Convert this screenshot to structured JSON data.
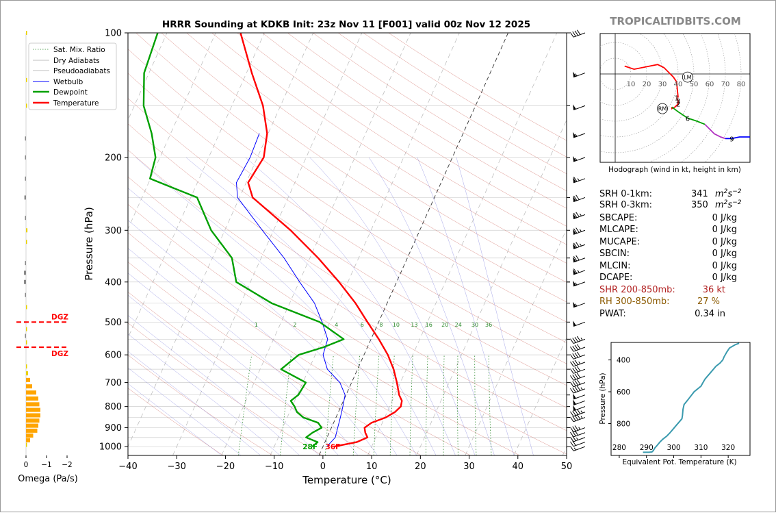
{
  "header": {
    "title": "HRRR Sounding at KDKB Init: 23z Nov 11 [F001] valid 00z Nov 12 2025",
    "brand": "TROPICALTIDBITS.COM"
  },
  "colors": {
    "temperature": "#ff0000",
    "dewpoint": "#00a000",
    "wetbulb": "#0000ff",
    "dry_adiabat": "#c0392b",
    "moist_adiabat": "#6a6ad8",
    "mixing_ratio": "#2e8b2e",
    "srh": "#9b30b0",
    "shear": "#b22222",
    "rh": "#8b5a00",
    "theta_e": "#3a9aae",
    "omega_up": "#ffa500",
    "omega_weak": "#e8d000",
    "omega_down": "#888888"
  },
  "chart_data": [
    {
      "type": "line",
      "name": "skew-t",
      "xlabel": "Temperature (°C)",
      "ylabel": "Pressure (hPa)",
      "xlim": [
        -40,
        50
      ],
      "ylim_pressure": [
        1050,
        100
      ],
      "log_y": true,
      "skew_deg_per_decade": 38,
      "xticks": [
        -40,
        -30,
        -20,
        -10,
        0,
        10,
        20,
        30,
        40,
        50
      ],
      "yticks": [
        1000,
        900,
        800,
        700,
        600,
        500,
        400,
        300,
        200,
        100
      ],
      "legend": [
        "Sat. Mix. Ratio",
        "Dry Adiabats",
        "Pseudoadiabats",
        "Wetbulb",
        "Dewpoint",
        "Temperature"
      ],
      "legend_position": "top-left",
      "mixing_ratio_labels": [
        "1",
        "2",
        "4",
        "6",
        "8",
        "10",
        "13",
        "16",
        "20",
        "24",
        "30",
        "36"
      ],
      "mixing_ratio_values": [
        1,
        2,
        4,
        6,
        8,
        10,
        13,
        16,
        20,
        24,
        30,
        36
      ],
      "surface_temp_label": "36F",
      "surface_dewpoint_label": "28F",
      "series": [
        {
          "name": "Temperature",
          "pressure": [
            1000,
            975,
            950,
            925,
            900,
            875,
            850,
            825,
            800,
            775,
            750,
            700,
            650,
            600,
            550,
            500,
            450,
            400,
            350,
            300,
            250,
            230,
            200,
            175,
            150,
            125,
            100
          ],
          "values": [
            2.2,
            6.5,
            8.3,
            7.4,
            6.8,
            7.8,
            10.2,
            11.6,
            12.3,
            12.0,
            10.9,
            9.3,
            7.4,
            4.9,
            1.6,
            -2.3,
            -6.5,
            -11.8,
            -18.3,
            -26.5,
            -37.3,
            -39.6,
            -38.7,
            -40.2,
            -43.6,
            -48.9,
            -54.9
          ]
        },
        {
          "name": "Dewpoint",
          "pressure": [
            1000,
            975,
            950,
            925,
            900,
            875,
            850,
            825,
            800,
            775,
            750,
            700,
            650,
            600,
            575,
            550,
            500,
            450,
            400,
            350,
            300,
            250,
            225,
            200,
            175,
            150,
            125,
            100
          ],
          "values": [
            -2.2,
            -1.5,
            -4.3,
            -3.4,
            -2.0,
            -3.2,
            -6.7,
            -8.5,
            -9.5,
            -10.8,
            -9.8,
            -9.4,
            -15.7,
            -13.4,
            -9.0,
            -5.6,
            -12.1,
            -23.7,
            -32.9,
            -36.0,
            -42.8,
            -48.7,
            -60.1,
            -60.9,
            -63.9,
            -68.1,
            -71.0,
            -71.9
          ]
        },
        {
          "name": "Wetbulb",
          "pressure": [
            1000,
            950,
            900,
            850,
            800,
            750,
            700,
            650,
            600,
            550,
            500,
            450,
            400,
            350,
            300,
            250,
            230,
            200,
            175
          ],
          "values": [
            0.8,
            1.7,
            1.3,
            0.9,
            0.4,
            -0.2,
            -2.4,
            -6.2,
            -8.4,
            -8.9,
            -11.6,
            -14.9,
            -19.9,
            -25.3,
            -32.3,
            -40.4,
            -42.0,
            -41.5,
            -41.8
          ]
        }
      ],
      "wind_barbs_pressure": [
        1000,
        975,
        950,
        925,
        900,
        850,
        825,
        800,
        775,
        750,
        725,
        700,
        675,
        650,
        625,
        600,
        575,
        550,
        500,
        450,
        400,
        375,
        350,
        325,
        300,
        275,
        250,
        225,
        200,
        175,
        150,
        125,
        100
      ],
      "wind_barbs_speed_kt": [
        15,
        20,
        25,
        30,
        35,
        45,
        45,
        50,
        50,
        50,
        45,
        40,
        40,
        40,
        35,
        40,
        40,
        45,
        50,
        55,
        55,
        65,
        70,
        75,
        75,
        75,
        70,
        65,
        55,
        55,
        50,
        55,
        40
      ]
    },
    {
      "type": "bar",
      "name": "omega",
      "xlabel": "Omega (Pa/s)",
      "xticks": [
        "0",
        "−1",
        "−2"
      ],
      "dgz_label": "DGZ",
      "dgz_pressure": [
        500,
        575
      ],
      "pressure": [
        990,
        965,
        940,
        915,
        890,
        865,
        840,
        815,
        790,
        765,
        740,
        715,
        690,
        665,
        640,
        560,
        540,
        520,
        460,
        430,
        400,
        380,
        360,
        320,
        300,
        280,
        250,
        225,
        200,
        180,
        150,
        130,
        100
      ],
      "values": [
        -0.05,
        -0.2,
        -0.35,
        -0.55,
        -0.6,
        -0.65,
        -0.7,
        -0.7,
        -0.65,
        -0.6,
        -0.5,
        -0.3,
        -0.2,
        -0.1,
        -0.05,
        -0.03,
        0.02,
        -0.02,
        -0.03,
        0.05,
        0.1,
        0.1,
        0.05,
        -0.05,
        -0.07,
        0.05,
        0.08,
        0.05,
        0.03,
        0.03,
        -0.02,
        -0.03,
        -0.02
      ]
    },
    {
      "type": "line",
      "name": "hodograph",
      "caption": "Hodograph (wind in kt, height in km)",
      "ring_labels": [
        "10",
        "20",
        "30",
        "40",
        "50",
        "60",
        "70",
        "80"
      ],
      "ring_values_kt": [
        10,
        20,
        30,
        40,
        50,
        60,
        70,
        80
      ],
      "height_labels": [
        "1",
        "2",
        "3",
        "6",
        "9"
      ],
      "storm_motion_labels": [
        "LM",
        "RM"
      ],
      "storm_motion_kt": {
        "LM": [
          46,
          -2
        ],
        "RM": [
          30,
          -22
        ]
      },
      "series": [
        {
          "name": "0-3 km",
          "u": [
            39,
            40,
            40,
            38,
            36,
            36
          ],
          "v": [
            -15,
            -17,
            -19,
            -21,
            -22,
            -21
          ]
        },
        {
          "name": "3-6 km",
          "u": [
            36,
            40,
            46,
            52,
            57
          ],
          "v": [
            -21,
            -24,
            -28,
            -30,
            -32
          ]
        },
        {
          "name": "6-9 km",
          "u": [
            57,
            60,
            63,
            67,
            70
          ],
          "v": [
            -32,
            -35,
            -38,
            -40,
            -41
          ]
        },
        {
          "name": "9+ km",
          "u": [
            70,
            74,
            79,
            83,
            86
          ],
          "v": [
            -41,
            -41,
            -40,
            -40,
            -40
          ]
        },
        {
          "name": "upper",
          "u": [
            40,
            39,
            37,
            35,
            31,
            27,
            22,
            12,
            6
          ],
          "v": [
            -15,
            -5,
            -2,
            0,
            4,
            6,
            5,
            3,
            5
          ]
        }
      ],
      "marker_height_km": [
        1,
        2,
        3,
        6,
        9
      ]
    },
    {
      "type": "line",
      "name": "theta-e",
      "xlabel": "Equivalent Pot. Temperature (K)",
      "ylabel": "Pressure (hPa)",
      "xlim": [
        277,
        328
      ],
      "ylim": [
        1000,
        290
      ],
      "xticks": [
        280,
        290,
        300,
        310,
        320
      ],
      "yticks": [
        400,
        600,
        800
      ],
      "theta_e": [
        288.7,
        291.0,
        292.0,
        292.5,
        293.0,
        294.0,
        295.0,
        296.0,
        297.5,
        298.5,
        299.5,
        301.0,
        302.0,
        303.0,
        303.2,
        303.4,
        303.8,
        305.0,
        307.5,
        310.0,
        310.5,
        311.5,
        313.5,
        315.5,
        317.0,
        318.0,
        318.5,
        319.5,
        320.5,
        322.5,
        324.0
      ],
      "pressure": [
        980,
        980,
        978,
        970,
        955,
        935,
        915,
        898,
        878,
        860,
        840,
        810,
        790,
        770,
        750,
        710,
        680,
        655,
        600,
        565,
        550,
        520,
        480,
        440,
        420,
        400,
        380,
        350,
        325,
        305,
        295
      ]
    }
  ],
  "indices": {
    "srh_0_1_label": "SRH 0-1km:",
    "srh_0_1_value": "341",
    "srh_0_3_label": "SRH 0-3km:",
    "srh_0_3_value": "350",
    "srh_unit_base": "m",
    "srh_unit_exp1": "2",
    "srh_unit_mid": "s",
    "srh_unit_exp2": "−2",
    "sbcape_label": "SBCAPE:",
    "sbcape_value": "0 J/kg",
    "mlcape_label": "MLCAPE:",
    "mlcape_value": "0 J/kg",
    "mucape_label": "MUCAPE:",
    "mucape_value": "0 J/kg",
    "sbcin_label": "SBCIN:",
    "sbcin_value": "0 J/kg",
    "mlcin_label": "MLCIN:",
    "mlcin_value": "0 J/kg",
    "dcape_label": "DCAPE:",
    "dcape_value": "0 J/kg",
    "shr_label": "SHR 200-850mb:",
    "shr_value": "36 kt",
    "rh_label": "RH 300-850mb:",
    "rh_value": "27 %",
    "pwat_label": "PWAT:",
    "pwat_value": "0.34 in"
  }
}
